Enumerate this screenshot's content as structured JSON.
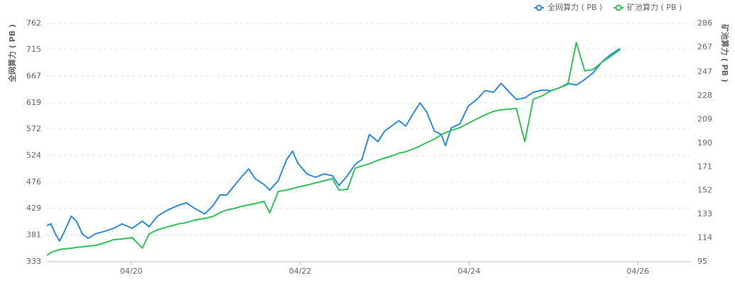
{
  "chart_data": {
    "type": "line",
    "x": [
      19.0,
      19.05,
      19.1,
      19.15,
      19.2,
      19.29,
      19.35,
      19.42,
      19.49,
      19.57,
      19.67,
      19.79,
      19.89,
      20.01,
      20.13,
      20.21,
      20.31,
      20.43,
      20.55,
      20.65,
      20.76,
      20.87,
      20.97,
      21.05,
      21.13,
      21.22,
      21.3,
      21.39,
      21.47,
      21.57,
      21.64,
      21.74,
      21.84,
      21.91,
      21.97,
      22.08,
      22.18,
      22.28,
      22.38,
      22.46,
      22.56,
      22.65,
      22.73,
      22.82,
      22.92,
      23.0,
      23.08,
      23.17,
      23.25,
      23.34,
      23.42,
      23.5,
      23.59,
      23.67,
      23.72,
      23.79,
      23.89,
      23.99,
      24.09,
      24.19,
      24.29,
      24.38,
      24.46,
      24.56,
      24.66,
      24.76,
      24.87,
      24.97,
      25.07,
      25.17,
      25.27,
      25.37,
      25.47,
      25.57,
      25.67,
      25.79
    ],
    "series": [
      {
        "name": "全网算力 ( PB )",
        "color": "#2a8ae8",
        "axis": "y",
        "values": [
          398,
          401,
          383,
          370,
          385,
          415,
          406,
          383,
          375,
          383,
          387,
          393,
          401,
          393,
          406,
          396,
          415,
          426,
          434,
          439,
          428,
          419,
          434,
          453,
          453,
          470,
          485,
          500,
          482,
          472,
          462,
          479,
          517,
          532,
          511,
          491,
          485,
          491,
          488,
          470,
          488,
          508,
          517,
          562,
          549,
          568,
          577,
          587,
          577,
          600,
          619,
          602,
          568,
          562,
          542,
          574,
          581,
          613,
          625,
          641,
          638,
          654,
          641,
          625,
          628,
          638,
          642,
          641,
          646,
          654,
          651,
          661,
          673,
          692,
          705,
          717
        ]
      },
      {
        "name": "矿池算力 ( PB )",
        "color": "#2fc25b",
        "axis": "y2",
        "values": [
          100.1,
          102.4,
          103.5,
          104.7,
          105.2,
          105.8,
          106.4,
          106.9,
          107.5,
          108.0,
          109.8,
          112.6,
          113.2,
          114.3,
          105.8,
          117.2,
          120.6,
          122.9,
          125.1,
          126.3,
          128.5,
          129.7,
          131.4,
          134.2,
          136.5,
          137.6,
          139.3,
          140.5,
          141.6,
          143.3,
          134.2,
          151.3,
          152.4,
          153.6,
          154.7,
          156.4,
          158.1,
          159.8,
          161.5,
          152.4,
          153.0,
          170.0,
          171.7,
          173.5,
          176.3,
          178.0,
          179.7,
          182.0,
          183.1,
          185.4,
          187.7,
          190.5,
          193.3,
          196.8,
          198.5,
          200.2,
          202.4,
          205.9,
          209.3,
          212.7,
          215.5,
          216.7,
          217.2,
          217.8,
          191.1,
          225.2,
          228.0,
          232.0,
          234.3,
          237.1,
          270.7,
          247.9,
          249.1,
          254.7,
          259.3,
          265.0
        ]
      }
    ],
    "y_label": "全网算力 ( PB )",
    "y2_label": "矿池算力 ( PB )",
    "xlim": [
      19,
      26.62
    ],
    "xticks": [
      {
        "value": 20,
        "label": "04/20"
      },
      {
        "value": 22,
        "label": "04/22"
      },
      {
        "value": 24,
        "label": "04/24"
      },
      {
        "value": 26,
        "label": "04/26"
      }
    ],
    "ylim": [
      333,
      762
    ],
    "yticks": [
      333,
      381,
      429,
      476,
      524,
      572,
      619,
      667,
      715,
      762
    ],
    "y2lim": [
      95,
      286
    ],
    "y2ticks": [
      95,
      114,
      133,
      152,
      171,
      190,
      209,
      228,
      247,
      267,
      286
    ],
    "grid": true,
    "legend": "top-right"
  }
}
